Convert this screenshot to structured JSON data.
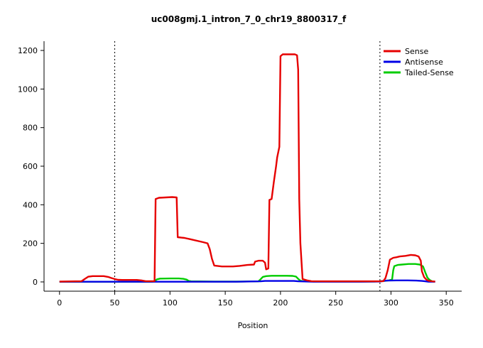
{
  "chart_data": {
    "type": "line",
    "title": "uc008gmj.1_intron_7_0_chr19_8800317_f",
    "xlabel": "Position",
    "ylabel": "",
    "xlim": [
      -14,
      364
    ],
    "ylim": [
      -48,
      1248
    ],
    "xticks": [
      0,
      50,
      100,
      150,
      200,
      250,
      300,
      350
    ],
    "yticks": [
      0,
      200,
      400,
      600,
      800,
      1000,
      1200
    ],
    "vlines": [
      50,
      290
    ],
    "grid": false,
    "legend_position": "top-right",
    "series": [
      {
        "name": "Sense",
        "color": "#e60000",
        "points": [
          [
            0,
            2
          ],
          [
            14,
            3
          ],
          [
            20,
            4
          ],
          [
            23,
            16
          ],
          [
            26,
            27
          ],
          [
            30,
            30
          ],
          [
            40,
            30
          ],
          [
            44,
            26
          ],
          [
            47,
            20
          ],
          [
            50,
            15
          ],
          [
            53,
            11
          ],
          [
            57,
            10
          ],
          [
            70,
            10
          ],
          [
            74,
            8
          ],
          [
            78,
            4
          ],
          [
            86,
            4
          ],
          [
            87,
            430
          ],
          [
            90,
            436
          ],
          [
            102,
            440
          ],
          [
            106,
            438
          ],
          [
            107,
            232
          ],
          [
            113,
            228
          ],
          [
            118,
            222
          ],
          [
            130,
            206
          ],
          [
            134,
            200
          ],
          [
            136,
            170
          ],
          [
            138,
            120
          ],
          [
            140,
            85
          ],
          [
            147,
            80
          ],
          [
            157,
            80
          ],
          [
            163,
            83
          ],
          [
            170,
            88
          ],
          [
            176,
            90
          ],
          [
            177,
            105
          ],
          [
            180,
            110
          ],
          [
            184,
            110
          ],
          [
            186,
            100
          ],
          [
            187,
            65
          ],
          [
            189,
            70
          ],
          [
            190,
            425
          ],
          [
            192,
            430
          ],
          [
            194,
            520
          ],
          [
            196,
            600
          ],
          [
            197,
            645
          ],
          [
            199,
            700
          ],
          [
            200,
            1170
          ],
          [
            202,
            1180
          ],
          [
            213,
            1180
          ],
          [
            215,
            1175
          ],
          [
            216,
            1100
          ],
          [
            217,
            430
          ],
          [
            218,
            200
          ],
          [
            220,
            15
          ],
          [
            224,
            8
          ],
          [
            228,
            4
          ],
          [
            240,
            3
          ],
          [
            260,
            3
          ],
          [
            280,
            3
          ],
          [
            290,
            3
          ],
          [
            293,
            4
          ],
          [
            295,
            20
          ],
          [
            297,
            60
          ],
          [
            299,
            115
          ],
          [
            302,
            125
          ],
          [
            305,
            128
          ],
          [
            308,
            132
          ],
          [
            313,
            135
          ],
          [
            318,
            140
          ],
          [
            322,
            138
          ],
          [
            325,
            132
          ],
          [
            327,
            110
          ],
          [
            328,
            55
          ],
          [
            330,
            25
          ],
          [
            332,
            12
          ],
          [
            334,
            6
          ],
          [
            337,
            3
          ],
          [
            340,
            2
          ]
        ]
      },
      {
        "name": "Antisense",
        "color": "#0000e6",
        "points": [
          [
            0,
            1
          ],
          [
            40,
            1
          ],
          [
            80,
            1
          ],
          [
            120,
            1
          ],
          [
            160,
            1
          ],
          [
            182,
            3
          ],
          [
            186,
            5
          ],
          [
            200,
            5
          ],
          [
            212,
            5
          ],
          [
            216,
            3
          ],
          [
            230,
            1
          ],
          [
            270,
            1
          ],
          [
            290,
            2
          ],
          [
            293,
            5
          ],
          [
            296,
            7
          ],
          [
            305,
            8
          ],
          [
            315,
            8
          ],
          [
            323,
            7
          ],
          [
            328,
            5
          ],
          [
            331,
            3
          ],
          [
            334,
            1
          ],
          [
            340,
            1
          ]
        ]
      },
      {
        "name": "Tailed-Sense",
        "color": "#00cc00",
        "points": [
          [
            0,
            1
          ],
          [
            60,
            1
          ],
          [
            84,
            1
          ],
          [
            86,
            3
          ],
          [
            88,
            13
          ],
          [
            91,
            17
          ],
          [
            100,
            18
          ],
          [
            108,
            18
          ],
          [
            112,
            16
          ],
          [
            115,
            12
          ],
          [
            117,
            5
          ],
          [
            119,
            3
          ],
          [
            140,
            2
          ],
          [
            165,
            2
          ],
          [
            180,
            3
          ],
          [
            182,
            14
          ],
          [
            184,
            26
          ],
          [
            187,
            30
          ],
          [
            192,
            32
          ],
          [
            206,
            32
          ],
          [
            211,
            31
          ],
          [
            214,
            28
          ],
          [
            216,
            16
          ],
          [
            218,
            6
          ],
          [
            221,
            3
          ],
          [
            250,
            2
          ],
          [
            285,
            2
          ],
          [
            290,
            3
          ],
          [
            294,
            5
          ],
          [
            298,
            8
          ],
          [
            301,
            12
          ],
          [
            302,
            60
          ],
          [
            303,
            82
          ],
          [
            306,
            88
          ],
          [
            310,
            90
          ],
          [
            316,
            93
          ],
          [
            322,
            93
          ],
          [
            326,
            90
          ],
          [
            329,
            80
          ],
          [
            331,
            50
          ],
          [
            333,
            22
          ],
          [
            335,
            10
          ],
          [
            337,
            4
          ],
          [
            339,
            1
          ]
        ]
      }
    ]
  }
}
